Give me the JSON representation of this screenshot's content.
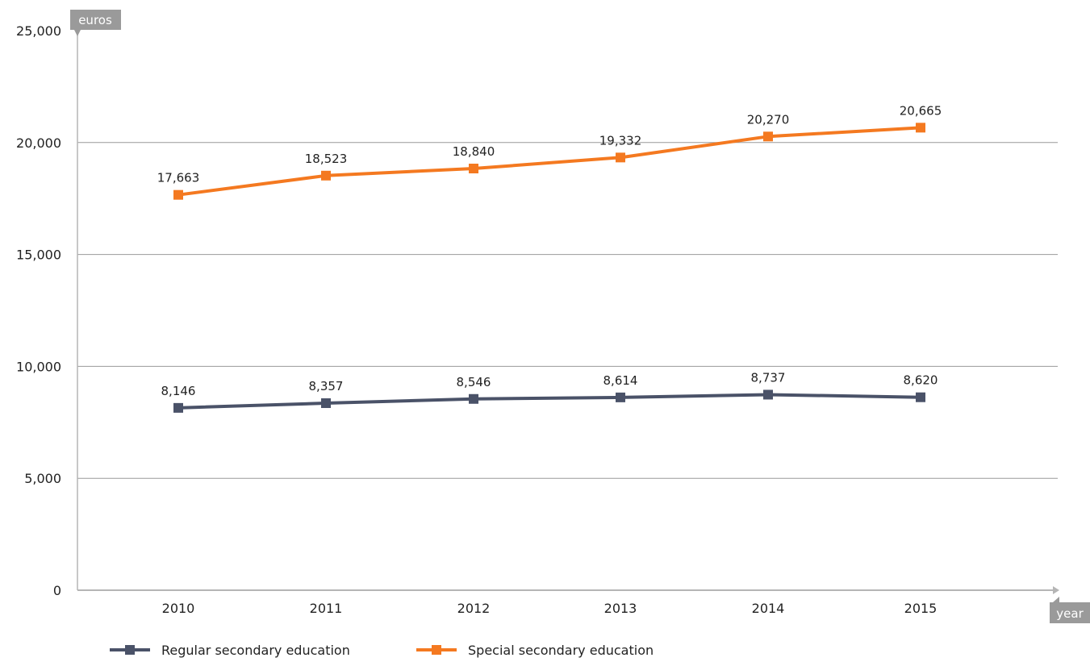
{
  "chart_data": {
    "type": "line",
    "ylabel": "euros",
    "xlabel": "year",
    "x": [
      "2010",
      "2011",
      "2012",
      "2013",
      "2014",
      "2015"
    ],
    "ylim": [
      0,
      25000
    ],
    "yticks": [
      "0",
      "5,000",
      "10,000",
      "15,000",
      "20,000",
      "25,000"
    ],
    "ytick_values": [
      0,
      5000,
      10000,
      15000,
      20000,
      25000
    ],
    "grid": true,
    "legend_position": "bottom-left",
    "series": [
      {
        "name": "Regular secondary education",
        "color": "#4a5268",
        "values": [
          8146,
          8357,
          8546,
          8614,
          8737,
          8620
        ],
        "labels": [
          "8,146",
          "8,357",
          "8,546",
          "8,614",
          "8,737",
          "8,620"
        ]
      },
      {
        "name": "Special secondary education",
        "color": "#f47920",
        "values": [
          17663,
          18523,
          18840,
          19332,
          20270,
          20665
        ],
        "labels": [
          "17,663",
          "18,523",
          "18,840",
          "19,332",
          "20,270",
          "20,665"
        ]
      }
    ]
  }
}
